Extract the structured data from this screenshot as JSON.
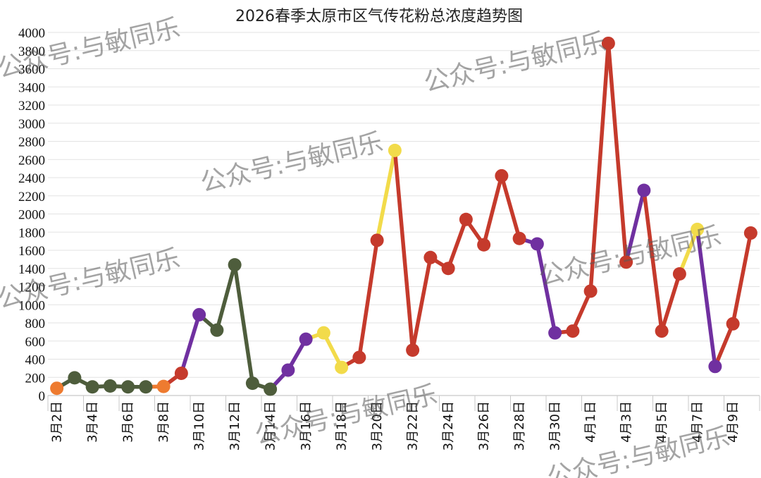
{
  "chart_data": {
    "type": "line",
    "title": "2026春季太原市区气传花粉总浓度趋势图",
    "xlabel": "",
    "ylabel": "",
    "ylim": [
      0,
      4000
    ],
    "ytick_step": 200,
    "grid": true,
    "x_start": "3月2日",
    "x_end": "4月10日",
    "x_tick_labels": [
      "3月2日",
      "3月4日",
      "3月6日",
      "3月8日",
      "3月10日",
      "3月12日",
      "3月14日",
      "3月16日",
      "3月18日",
      "3月20日",
      "3月22日",
      "3月24日",
      "3月26日",
      "3月28日",
      "3月30日",
      "4月1日",
      "4月3日",
      "4月5日",
      "4月7日",
      "4月9日"
    ],
    "points": [
      {
        "x": "3月2日",
        "y": 80,
        "color": "#EE7B30"
      },
      {
        "x": "3月3日",
        "y": 195,
        "color": "#4E5D3C"
      },
      {
        "x": "3月4日",
        "y": 95,
        "color": "#4E5D3C"
      },
      {
        "x": "3月5日",
        "y": 105,
        "color": "#4E5D3C"
      },
      {
        "x": "3月6日",
        "y": 95,
        "color": "#4E5D3C"
      },
      {
        "x": "3月7日",
        "y": 95,
        "color": "#4E5D3C"
      },
      {
        "x": "3月8日",
        "y": 100,
        "color": "#EE7B30"
      },
      {
        "x": "3月9日",
        "y": 245,
        "color": "#C53A2C"
      },
      {
        "x": "3月10日",
        "y": 890,
        "color": "#7030A0"
      },
      {
        "x": "3月11日",
        "y": 720,
        "color": "#4E5D3C"
      },
      {
        "x": "3月12日",
        "y": 1440,
        "color": "#4E5D3C"
      },
      {
        "x": "3月13日",
        "y": 135,
        "color": "#4E5D3C"
      },
      {
        "x": "3月14日",
        "y": 70,
        "color": "#4E5D3C"
      },
      {
        "x": "3月15日",
        "y": 280,
        "color": "#7030A0"
      },
      {
        "x": "3月16日",
        "y": 620,
        "color": "#7030A0"
      },
      {
        "x": "3月17日",
        "y": 690,
        "color": "#F2DB4A"
      },
      {
        "x": "3月18日",
        "y": 310,
        "color": "#F2DB4A"
      },
      {
        "x": "3月19日",
        "y": 420,
        "color": "#C53A2C"
      },
      {
        "x": "3月20日",
        "y": 1710,
        "color": "#C53A2C"
      },
      {
        "x": "3月21日",
        "y": 2700,
        "color": "#F2DB4A"
      },
      {
        "x": "3月22日",
        "y": 500,
        "color": "#C53A2C"
      },
      {
        "x": "3月23日",
        "y": 1520,
        "color": "#C53A2C"
      },
      {
        "x": "3月24日",
        "y": 1400,
        "color": "#C53A2C"
      },
      {
        "x": "3月25日",
        "y": 1940,
        "color": "#C53A2C"
      },
      {
        "x": "3月26日",
        "y": 1660,
        "color": "#C53A2C"
      },
      {
        "x": "3月27日",
        "y": 2420,
        "color": "#C53A2C"
      },
      {
        "x": "3月28日",
        "y": 1730,
        "color": "#C53A2C"
      },
      {
        "x": "3月29日",
        "y": 1670,
        "color": "#7030A0"
      },
      {
        "x": "3月30日",
        "y": 690,
        "color": "#7030A0"
      },
      {
        "x": "3月31日",
        "y": 710,
        "color": "#C53A2C"
      },
      {
        "x": "4月1日",
        "y": 1150,
        "color": "#C53A2C"
      },
      {
        "x": "4月2日",
        "y": 3880,
        "color": "#C53A2C"
      },
      {
        "x": "4月3日",
        "y": 1470,
        "color": "#C53A2C"
      },
      {
        "x": "4月4日",
        "y": 2260,
        "color": "#7030A0"
      },
      {
        "x": "4月5日",
        "y": 710,
        "color": "#C53A2C"
      },
      {
        "x": "4月6日",
        "y": 1340,
        "color": "#C53A2C"
      },
      {
        "x": "4月7日",
        "y": 1830,
        "color": "#F2DB4A"
      },
      {
        "x": "4月8日",
        "y": 320,
        "color": "#7030A0"
      },
      {
        "x": "4月9日",
        "y": 790,
        "color": "#C53A2C"
      },
      {
        "x": "4月10日",
        "y": 1790,
        "color": "#C53A2C"
      }
    ]
  },
  "watermark": "公众号:与敏同乐"
}
